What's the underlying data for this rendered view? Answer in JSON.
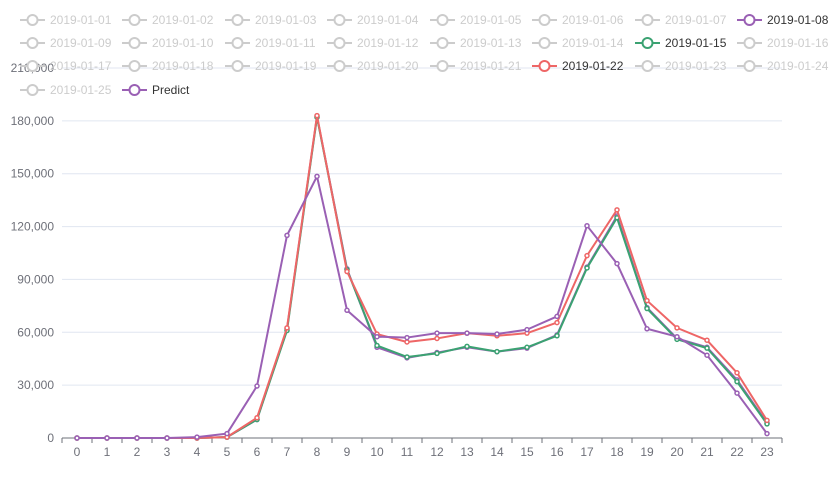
{
  "chart_data": {
    "type": "line",
    "x": [
      "0",
      "1",
      "2",
      "3",
      "4",
      "5",
      "6",
      "7",
      "8",
      "9",
      "10",
      "11",
      "12",
      "13",
      "14",
      "15",
      "16",
      "17",
      "18",
      "19",
      "20",
      "21",
      "22",
      "23"
    ],
    "ylim": [
      0,
      210000
    ],
    "yticks": [
      "0",
      "30,000",
      "60,000",
      "90,000",
      "120,000",
      "150,000",
      "180,000",
      "210,000"
    ],
    "grid": true,
    "legend_position": "top",
    "legend": [
      {
        "name": "2019-01-01",
        "active": false,
        "color": "#cccccc"
      },
      {
        "name": "2019-01-02",
        "active": false,
        "color": "#cccccc"
      },
      {
        "name": "2019-01-03",
        "active": false,
        "color": "#cccccc"
      },
      {
        "name": "2019-01-04",
        "active": false,
        "color": "#cccccc"
      },
      {
        "name": "2019-01-05",
        "active": false,
        "color": "#cccccc"
      },
      {
        "name": "2019-01-06",
        "active": false,
        "color": "#cccccc"
      },
      {
        "name": "2019-01-07",
        "active": false,
        "color": "#cccccc"
      },
      {
        "name": "2019-01-08",
        "active": true,
        "color": "#9a60b4"
      },
      {
        "name": "2019-01-09",
        "active": false,
        "color": "#cccccc"
      },
      {
        "name": "2019-01-10",
        "active": false,
        "color": "#cccccc"
      },
      {
        "name": "2019-01-11",
        "active": false,
        "color": "#cccccc"
      },
      {
        "name": "2019-01-12",
        "active": false,
        "color": "#cccccc"
      },
      {
        "name": "2019-01-13",
        "active": false,
        "color": "#cccccc"
      },
      {
        "name": "2019-01-14",
        "active": false,
        "color": "#cccccc"
      },
      {
        "name": "2019-01-15",
        "active": true,
        "color": "#3ba272"
      },
      {
        "name": "2019-01-16",
        "active": false,
        "color": "#cccccc"
      },
      {
        "name": "2019-01-17",
        "active": false,
        "color": "#cccccc"
      },
      {
        "name": "2019-01-18",
        "active": false,
        "color": "#cccccc"
      },
      {
        "name": "2019-01-19",
        "active": false,
        "color": "#cccccc"
      },
      {
        "name": "2019-01-20",
        "active": false,
        "color": "#cccccc"
      },
      {
        "name": "2019-01-21",
        "active": false,
        "color": "#cccccc"
      },
      {
        "name": "2019-01-22",
        "active": true,
        "color": "#ee6666"
      },
      {
        "name": "2019-01-23",
        "active": false,
        "color": "#cccccc"
      },
      {
        "name": "2019-01-24",
        "active": false,
        "color": "#cccccc"
      },
      {
        "name": "2019-01-25",
        "active": false,
        "color": "#cccccc"
      },
      {
        "name": "Predict",
        "active": true,
        "color": "#9a60b4"
      }
    ],
    "series": [
      {
        "name": "2019-01-08",
        "color": "#9a60b4",
        "values": [
          0,
          0,
          0,
          0,
          0,
          500,
          10500,
          62000,
          182500,
          96000,
          51500,
          45500,
          48500,
          51500,
          49000,
          51000,
          58500,
          97000,
          126000,
          74000,
          56500,
          51500,
          33000,
          8500
        ]
      },
      {
        "name": "2019-01-15",
        "color": "#3ba272",
        "values": [
          0,
          0,
          0,
          0,
          0,
          500,
          10500,
          61000,
          182000,
          95500,
          52500,
          46000,
          48000,
          52000,
          49000,
          51500,
          58000,
          96500,
          125000,
          73500,
          56000,
          51000,
          32000,
          8000
        ]
      },
      {
        "name": "2019-01-22",
        "color": "#ee6666",
        "values": [
          0,
          0,
          0,
          0,
          0,
          500,
          11500,
          62500,
          183000,
          94500,
          59000,
          54500,
          56500,
          59500,
          58000,
          59500,
          65500,
          103500,
          129500,
          78000,
          62500,
          55500,
          37000,
          10000
        ]
      },
      {
        "name": "Predict",
        "color": "#9a60b4",
        "values": [
          0,
          0,
          0,
          0,
          500,
          2500,
          29500,
          115000,
          148500,
          72500,
          57500,
          57000,
          59500,
          59500,
          59000,
          61500,
          69000,
          120500,
          99000,
          62000,
          57500,
          47000,
          25500,
          2500
        ]
      }
    ]
  }
}
